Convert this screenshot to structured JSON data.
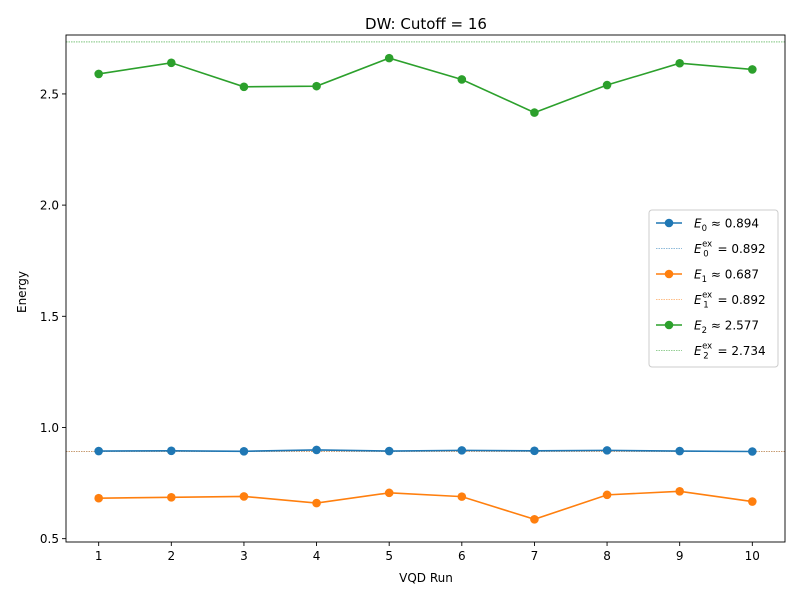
{
  "chart_data": {
    "type": "line",
    "title": "DW: Cutoff = 16",
    "xlabel": "VQD Run",
    "ylabel": "Energy",
    "x": [
      1,
      2,
      3,
      4,
      5,
      6,
      7,
      8,
      9,
      10
    ],
    "x_ticks": [
      "1",
      "2",
      "3",
      "4",
      "5",
      "6",
      "7",
      "8",
      "9",
      "10"
    ],
    "y_ticks": [
      "0.5",
      "1.0",
      "1.5",
      "2.0",
      "2.5"
    ],
    "y_tick_values": [
      0.5,
      1.0,
      1.5,
      2.0,
      2.5
    ],
    "xlim": [
      0.55,
      10.45
    ],
    "ylim": [
      0.485,
      2.765
    ],
    "grid": false,
    "legend_placement": "center-right",
    "series": [
      {
        "name": "E0 ≈ 0.894",
        "legend_main": "E",
        "legend_sub": "0",
        "legend_rest": " ≈ 0.894",
        "color": "#1f77b4",
        "values": [
          0.894,
          0.895,
          0.893,
          0.899,
          0.894,
          0.897,
          0.895,
          0.897,
          0.894,
          0.892
        ]
      },
      {
        "name": "E1 ≈ 0.687",
        "legend_main": "E",
        "legend_sub": "1",
        "legend_rest": " ≈ 0.687",
        "color": "#ff7f0e",
        "values": [
          0.682,
          0.686,
          0.69,
          0.66,
          0.706,
          0.689,
          0.587,
          0.697,
          0.713,
          0.667
        ]
      },
      {
        "name": "E2 ≈ 2.577",
        "legend_main": "E",
        "legend_sub": "2",
        "legend_rest": " ≈ 2.577",
        "color": "#2ca02c",
        "values": [
          2.59,
          2.64,
          2.532,
          2.535,
          2.661,
          2.565,
          2.416,
          2.54,
          2.638,
          2.61
        ]
      }
    ],
    "exact_lines": [
      {
        "name": "E0ex = 0.892",
        "legend_main": "E",
        "legend_sub": "0",
        "legend_sup": "ex",
        "legend_rest": " = 0.892",
        "color": "#1f77b4",
        "value": 0.892
      },
      {
        "name": "E1ex = 0.892",
        "legend_main": "E",
        "legend_sub": "1",
        "legend_sup": "ex",
        "legend_rest": " = 0.892",
        "color": "#ff7f0e",
        "value": 0.892
      },
      {
        "name": "E2ex = 2.734",
        "legend_main": "E",
        "legend_sub": "2",
        "legend_sup": "ex",
        "legend_rest": " = 2.734",
        "color": "#2ca02c",
        "value": 2.734
      }
    ]
  }
}
